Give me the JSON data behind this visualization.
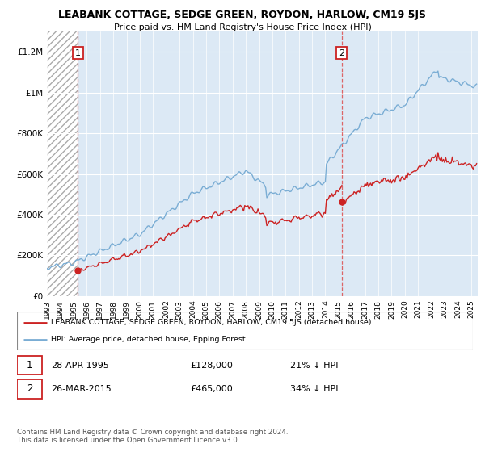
{
  "title": "LEABANK COTTAGE, SEDGE GREEN, ROYDON, HARLOW, CM19 5JS",
  "subtitle": "Price paid vs. HM Land Registry's House Price Index (HPI)",
  "ylim": [
    0,
    1300000
  ],
  "yticks": [
    0,
    200000,
    400000,
    600000,
    800000,
    1000000,
    1200000
  ],
  "ytick_labels": [
    "£0",
    "£200K",
    "£400K",
    "£600K",
    "£800K",
    "£1M",
    "£1.2M"
  ],
  "plot_bg_color": "#dce9f5",
  "grid_color": "#ffffff",
  "sale1_x": 1995.32,
  "sale1_y": 128000,
  "sale2_x": 2015.23,
  "sale2_y": 465000,
  "hpi_line_color": "#7aadd4",
  "sale_line_color": "#cc2222",
  "vline_color": "#dd4444",
  "legend_house_label": "LEABANK COTTAGE, SEDGE GREEN, ROYDON, HARLOW, CM19 5JS (detached house)",
  "legend_hpi_label": "HPI: Average price, detached house, Epping Forest",
  "footer": "Contains HM Land Registry data © Crown copyright and database right 2024.\nThis data is licensed under the Open Government Licence v3.0.",
  "xmin": 1993,
  "xmax": 2025.5
}
